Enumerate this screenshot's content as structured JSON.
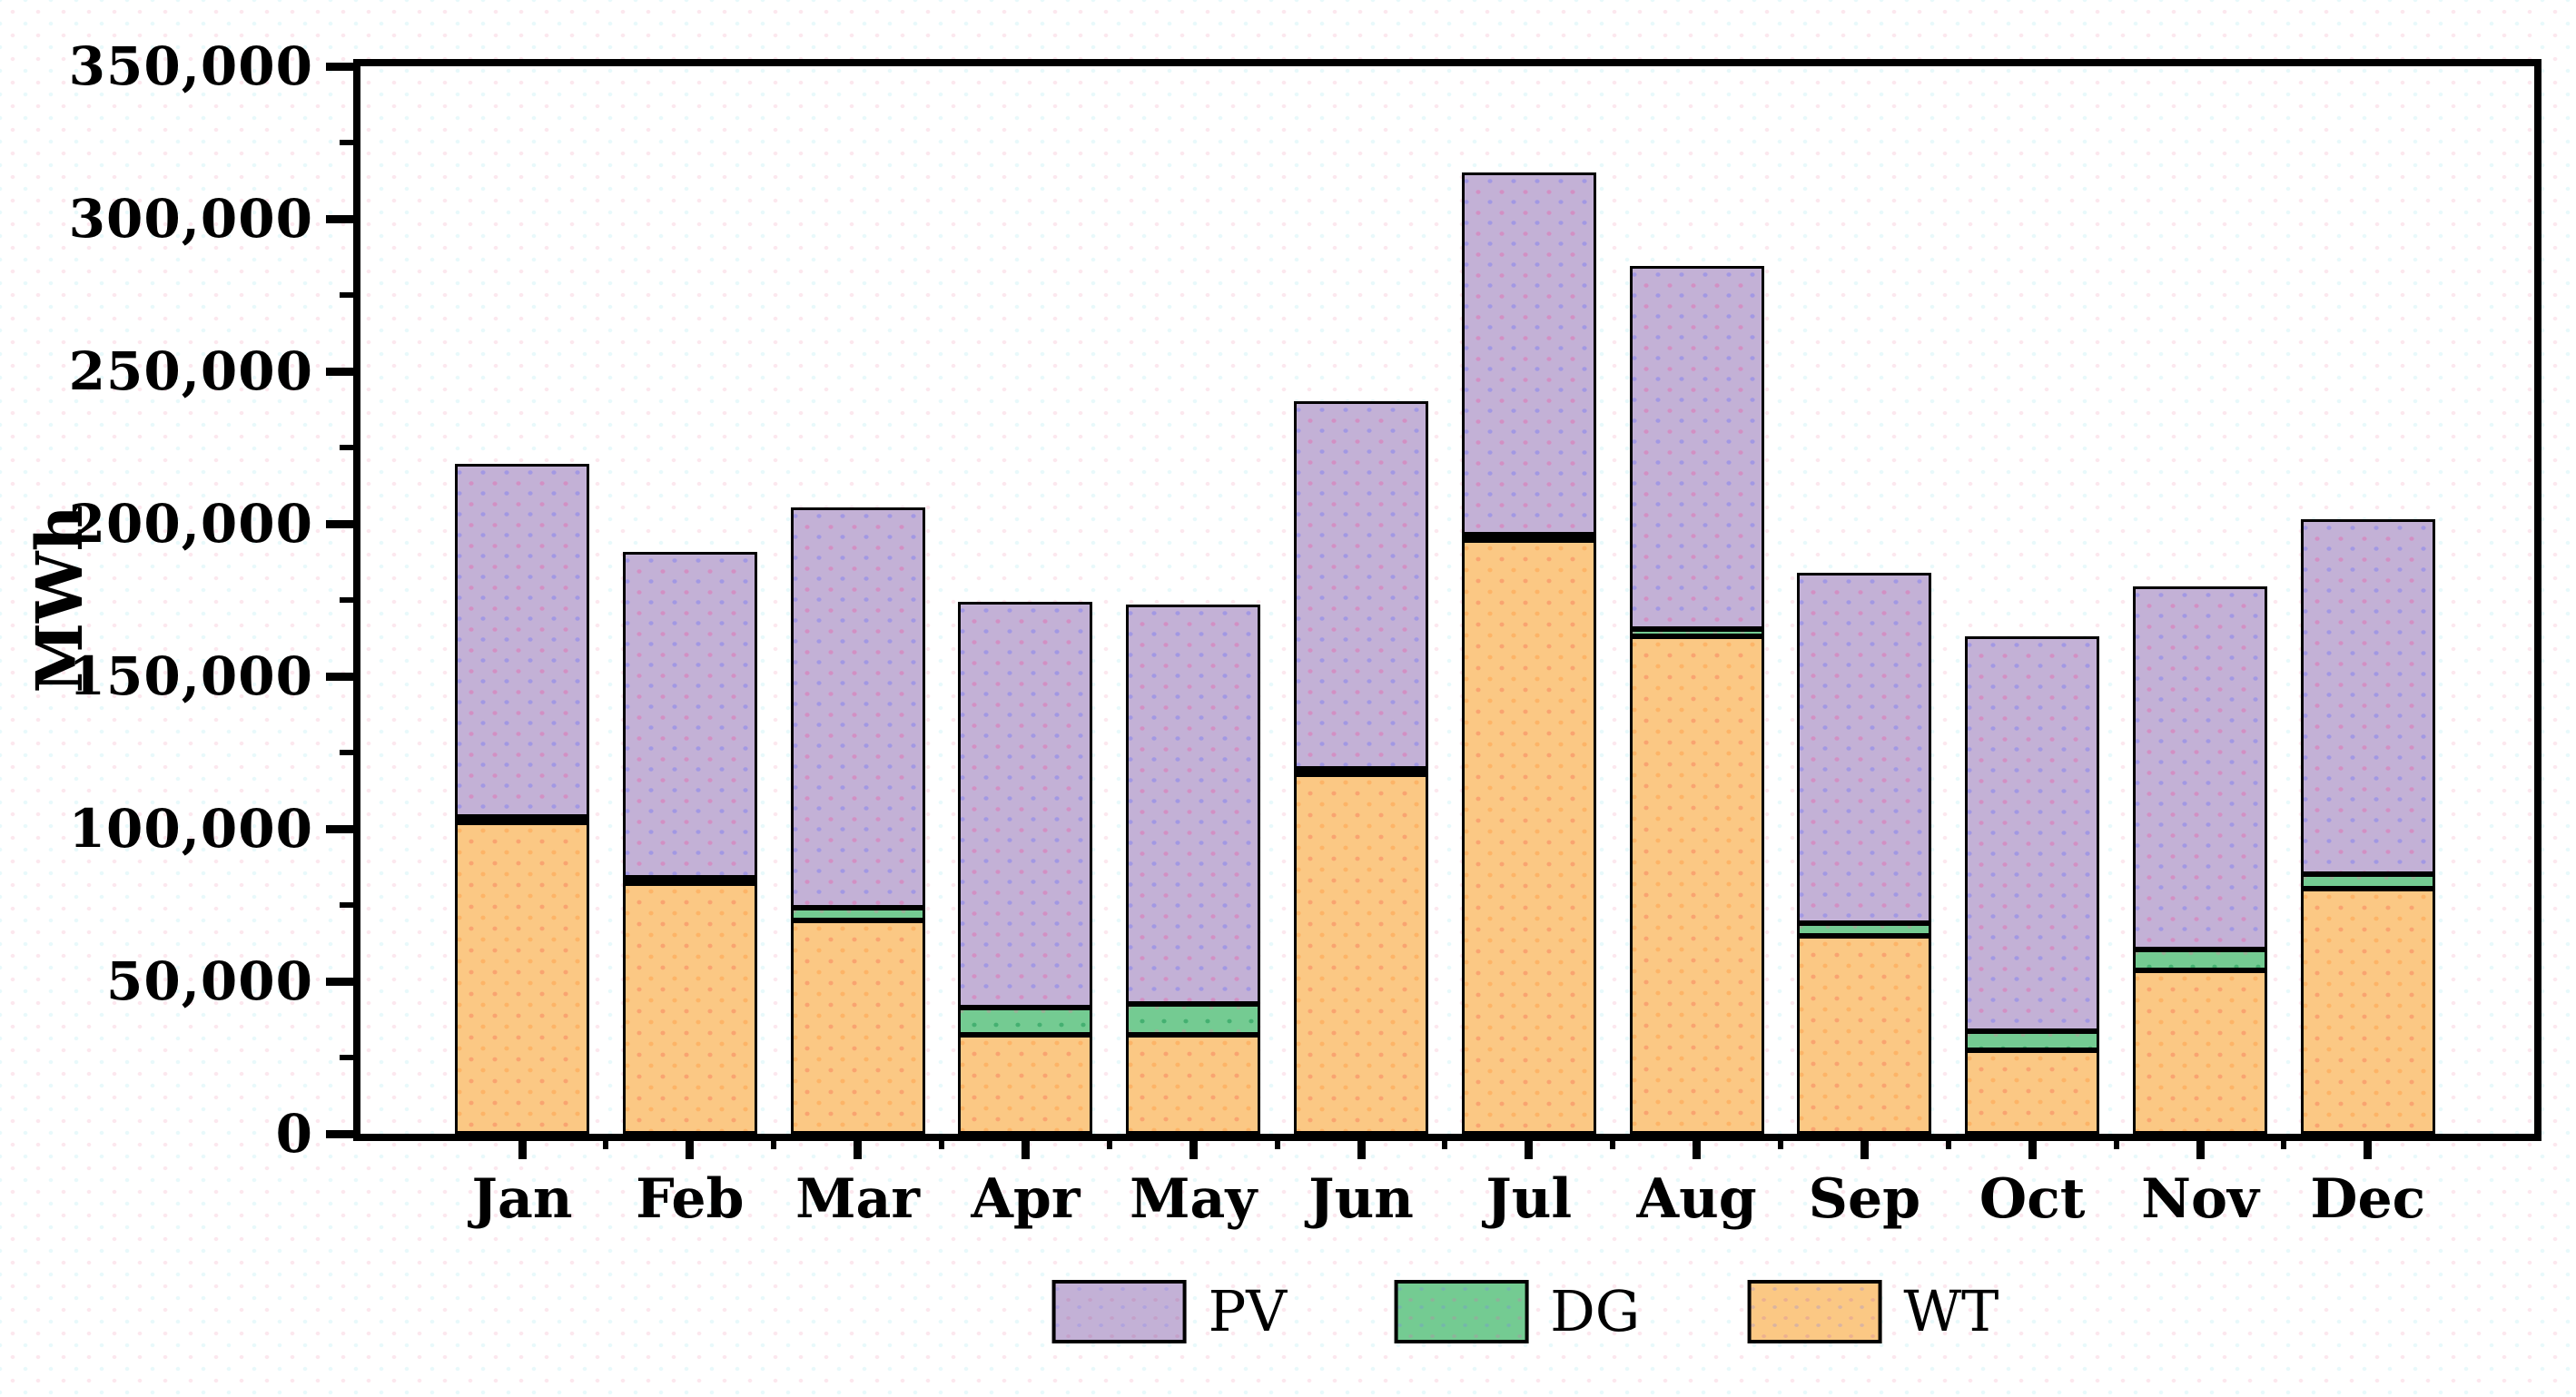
{
  "chart_data": {
    "type": "bar",
    "stacked": true,
    "title": "",
    "xlabel": "",
    "ylabel": "MWh",
    "ylim": [
      0,
      350000
    ],
    "y_major_step": 50000,
    "y_minor_step": 25000,
    "grid": false,
    "legend_position": "bottom-center",
    "categories": [
      "Jan",
      "Feb",
      "Mar",
      "Apr",
      "May",
      "Jun",
      "Jul",
      "Aug",
      "Sep",
      "Oct",
      "Nov",
      "Dec"
    ],
    "series": [
      {
        "name": "WT",
        "color": "#FBC884",
        "values": [
          102000,
          82000,
          70000,
          32500,
          32500,
          118000,
          194500,
          163000,
          65000,
          27500,
          53500,
          80500
        ]
      },
      {
        "name": "DG",
        "color": "#74CB92",
        "values": [
          1500,
          1000,
          4000,
          9000,
          10000,
          1000,
          1000,
          2500,
          4000,
          6000,
          7000,
          4500
        ]
      },
      {
        "name": "PV",
        "color": "#C3B1D6",
        "values": [
          116000,
          107000,
          131500,
          133000,
          131000,
          120500,
          119000,
          119000,
          115000,
          129500,
          119000,
          116500
        ]
      }
    ],
    "totals": [
      219500,
      190000,
      205500,
      174500,
      173500,
      239500,
      314500,
      284500,
      184000,
      163000,
      179500,
      201500
    ]
  },
  "y_axis": {
    "label": "MWh",
    "tick_labels": [
      "0",
      "50,000",
      "100,000",
      "150,000",
      "200,000",
      "250,000",
      "300,000",
      "350,000"
    ]
  },
  "x_axis": {
    "tick_labels": [
      "Jan",
      "Feb",
      "Mar",
      "Apr",
      "May",
      "Jun",
      "Jul",
      "Aug",
      "Sep",
      "Oct",
      "Nov",
      "Dec"
    ]
  },
  "legend": {
    "items": [
      {
        "label": "PV",
        "color": "#C3B1D6"
      },
      {
        "label": "DG",
        "color": "#74CB92"
      },
      {
        "label": "WT",
        "color": "#FBC884"
      }
    ]
  },
  "styles": {
    "bar_border": "#000000",
    "axis_color": "#000000",
    "background": "#ffffff"
  }
}
